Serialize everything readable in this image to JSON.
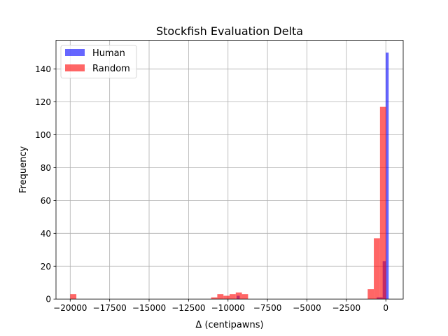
{
  "chart_data": {
    "type": "bar",
    "title": "Stockfish Evaluation Delta",
    "xlabel": "Δ (centipawns)",
    "ylabel": "Frequency",
    "xlim": [
      -20900,
      1100
    ],
    "ylim": [
      0,
      157.5
    ],
    "xticks": [
      -20000,
      -17500,
      -15000,
      -12500,
      -10000,
      -7500,
      -5000,
      -2500,
      0
    ],
    "xtick_labels": [
      "−20000",
      "−17500",
      "−15000",
      "−12500",
      "−10000",
      "−7500",
      "−5000",
      "−2500",
      "0"
    ],
    "yticks": [
      0,
      20,
      40,
      60,
      80,
      100,
      120,
      140
    ],
    "ytick_labels": [
      "0",
      "20",
      "40",
      "60",
      "80",
      "100",
      "120",
      "140"
    ],
    "grid": true,
    "legend_position": "top-left",
    "series": [
      {
        "name": "Human",
        "color": "#0000ff",
        "opacity": 0.6,
        "bins": [
          {
            "x0": -9450,
            "x1": -9260,
            "count": 2
          },
          {
            "x0": -580,
            "x1": -390,
            "count": 1
          },
          {
            "x0": -390,
            "x1": -200,
            "count": 1
          },
          {
            "x0": -200,
            "x1": -10,
            "count": 23
          },
          {
            "x0": -10,
            "x1": 180,
            "count": 150
          }
        ]
      },
      {
        "name": "Random",
        "color": "#ff0000",
        "opacity": 0.6,
        "bins": [
          {
            "x0": -20000,
            "x1": -19610,
            "count": 3
          },
          {
            "x0": -11070,
            "x1": -10680,
            "count": 1
          },
          {
            "x0": -10680,
            "x1": -10290,
            "count": 3
          },
          {
            "x0": -10290,
            "x1": -9900,
            "count": 2
          },
          {
            "x0": -9900,
            "x1": -9510,
            "count": 3
          },
          {
            "x0": -9510,
            "x1": -9120,
            "count": 4
          },
          {
            "x0": -9120,
            "x1": -8730,
            "count": 3
          },
          {
            "x0": -1150,
            "x1": -760,
            "count": 6
          },
          {
            "x0": -760,
            "x1": -370,
            "count": 37
          },
          {
            "x0": -370,
            "x1": 20,
            "count": 117
          }
        ]
      }
    ]
  }
}
